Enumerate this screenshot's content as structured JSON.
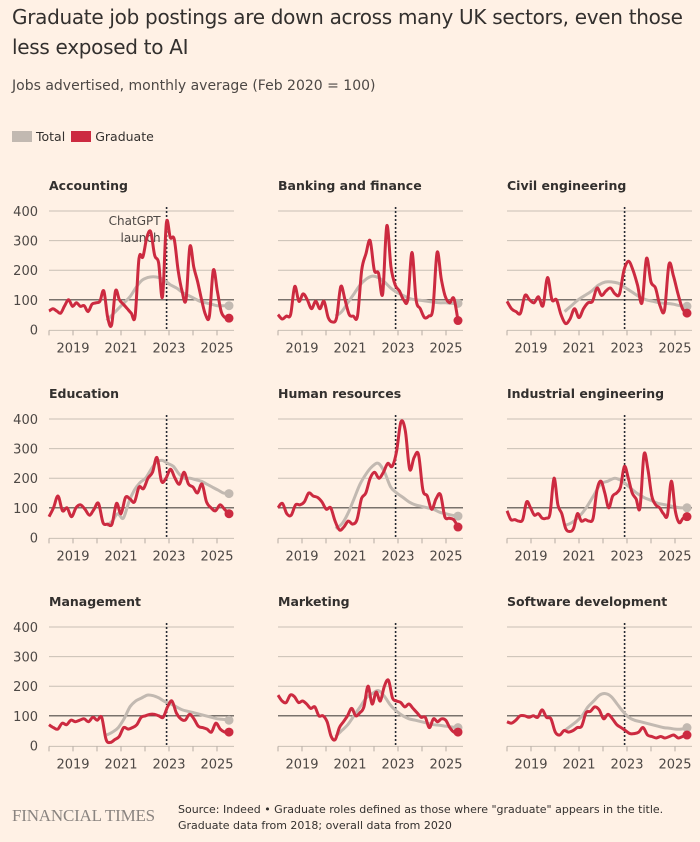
{
  "title": "Graduate job postings are down across many UK sectors, even those less exposed to AI",
  "subtitle": "Jobs advertised, monthly average (Feb 2020 = 100)",
  "legend": [
    {
      "label": "Total",
      "color": "#c2b9b1"
    },
    {
      "label": "Graduate",
      "color": "#cc2a40"
    }
  ],
  "footer": {
    "logo": "FINANCIAL TIMES",
    "source": "Source: Indeed • Graduate roles defined as those where \"graduate\" appears in the title. Graduate data from 2018; overall data from 2020"
  },
  "chart_data": {
    "type": "line",
    "layout": "small-multiples 3x3",
    "ylim": [
      0,
      400
    ],
    "yticks": [
      0,
      100,
      200,
      300,
      400
    ],
    "xlim": [
      2018,
      2025.7
    ],
    "xticks": [
      2018,
      2019,
      2020,
      2021,
      2022,
      2023,
      2024,
      2025
    ],
    "xtick_labels": [
      "2019",
      "2021",
      "2023",
      "2025"
    ],
    "xtick_label_years": [
      2019,
      2021,
      2023,
      2025
    ],
    "reference_line": 100,
    "annotation": {
      "label_line1": "ChatGPT",
      "label_line2": "launch",
      "x": 2022.9
    },
    "graduate_start": 2018.0,
    "total_start": 2020.4,
    "step_years": 0.1667,
    "series_colors": {
      "Total": "#c2b9b1",
      "Graduate": "#cc2a40"
    },
    "panels": [
      {
        "name": "Accounting",
        "graduate": [
          62,
          70,
          62,
          55,
          80,
          100,
          78,
          90,
          78,
          80,
          60,
          85,
          90,
          95,
          130,
          40,
          15,
          130,
          100,
          85,
          70,
          55,
          45,
          240,
          245,
          310,
          330,
          250,
          225,
          110,
          360,
          310,
          305,
          200,
          130,
          100,
          280,
          210,
          160,
          100,
          50,
          45,
          200,
          130,
          60,
          40,
          38
        ],
        "total": [
          30,
          50,
          70,
          90,
          110,
          140,
          165,
          175,
          178,
          175,
          165,
          150,
          140,
          125,
          115,
          105,
          95,
          90,
          85,
          80,
          80,
          80
        ]
      },
      {
        "name": "Banking and finance",
        "graduate": [
          50,
          35,
          45,
          50,
          145,
          95,
          120,
          100,
          70,
          95,
          70,
          95,
          40,
          25,
          40,
          145,
          100,
          50,
          45,
          45,
          200,
          255,
          300,
          200,
          190,
          120,
          350,
          210,
          150,
          130,
          100,
          100,
          260,
          100,
          70,
          40,
          45,
          70,
          260,
          170,
          110,
          90,
          105,
          30
        ],
        "total": [
          45,
          60,
          90,
          120,
          150,
          170,
          180,
          175,
          160,
          140,
          125,
          115,
          105,
          100,
          98,
          95,
          92,
          90,
          90,
          88,
          88
        ]
      },
      {
        "name": "Civil engineering",
        "graduate": [
          95,
          70,
          60,
          55,
          115,
          100,
          90,
          110,
          80,
          175,
          100,
          100,
          50,
          20,
          35,
          70,
          40,
          70,
          90,
          95,
          140,
          115,
          130,
          140,
          120,
          120,
          200,
          230,
          200,
          150,
          90,
          240,
          160,
          140,
          80,
          65,
          220,
          180,
          120,
          70,
          55
        ],
        "total": [
          60,
          80,
          100,
          115,
          130,
          150,
          160,
          160,
          155,
          140,
          125,
          110,
          100,
          95,
          90,
          88,
          85,
          80,
          78
        ]
      }
    ],
    "panels_row2": [
      {
        "name": "Education",
        "graduate": [
          70,
          100,
          140,
          90,
          100,
          70,
          100,
          110,
          95,
          75,
          95,
          115,
          50,
          45,
          45,
          115,
          80,
          135,
          130,
          120,
          170,
          165,
          200,
          220,
          270,
          190,
          200,
          230,
          200,
          180,
          220,
          180,
          170,
          150,
          180,
          120,
          100,
          90,
          110,
          95,
          80
        ],
        "total": [
          40,
          55,
          80,
          65,
          120,
          160,
          185,
          200,
          230,
          255,
          260,
          250,
          240,
          215,
          200,
          200,
          195,
          190,
          180,
          170,
          160,
          150,
          148
        ]
      },
      {
        "name": "Human resources",
        "graduate": [
          100,
          115,
          80,
          75,
          110,
          110,
          120,
          150,
          140,
          135,
          120,
          95,
          100,
          55,
          25,
          35,
          55,
          45,
          60,
          130,
          150,
          200,
          220,
          200,
          220,
          250,
          240,
          290,
          390,
          360,
          230,
          270,
          280,
          160,
          140,
          95,
          130,
          145,
          70,
          65,
          60,
          35
        ],
        "total": [
          30,
          45,
          80,
          130,
          180,
          215,
          240,
          250,
          220,
          170,
          150,
          135,
          120,
          110,
          105,
          100,
          95,
          85,
          80,
          75,
          72
        ]
      },
      {
        "name": "Industrial engineering",
        "graduate": [
          90,
          60,
          60,
          55,
          60,
          120,
          100,
          75,
          80,
          65,
          65,
          80,
          200,
          110,
          80,
          30,
          20,
          30,
          80,
          55,
          60,
          55,
          65,
          160,
          190,
          150,
          100,
          140,
          150,
          170,
          240,
          200,
          150,
          130,
          100,
          280,
          230,
          140,
          110,
          100,
          80,
          75,
          190,
          90,
          50,
          65,
          70
        ],
        "total": [
          40,
          50,
          70,
          100,
          140,
          180,
          190,
          200,
          190,
          170,
          150,
          135,
          125,
          115,
          110,
          105,
          100,
          100
        ]
      }
    ],
    "panels_row3": [
      {
        "name": "Management",
        "graduate": [
          70,
          60,
          55,
          75,
          70,
          85,
          80,
          85,
          90,
          80,
          95,
          85,
          95,
          20,
          10,
          20,
          30,
          60,
          55,
          60,
          70,
          95,
          100,
          105,
          105,
          100,
          95,
          130,
          150,
          110,
          90,
          85,
          105,
          90,
          65,
          60,
          55,
          45,
          75,
          55,
          45,
          45
        ],
        "total": [
          35,
          45,
          60,
          90,
          130,
          150,
          160,
          170,
          168,
          160,
          148,
          140,
          130,
          120,
          115,
          110,
          105,
          100,
          95,
          90,
          88,
          85
        ]
      },
      {
        "name": "Marketing",
        "graduate": [
          170,
          150,
          145,
          170,
          165,
          145,
          150,
          140,
          125,
          130,
          100,
          100,
          80,
          30,
          20,
          60,
          80,
          100,
          125,
          100,
          110,
          130,
          200,
          140,
          180,
          150,
          200,
          220,
          160,
          150,
          145,
          130,
          140,
          125,
          110,
          95,
          95,
          60,
          90,
          80,
          90,
          85,
          60,
          45,
          45
        ],
        "total": [
          30,
          50,
          70,
          100,
          130,
          160,
          175,
          185,
          165,
          135,
          115,
          100,
          90,
          85,
          80,
          75,
          70,
          68,
          65,
          62,
          60
        ]
      },
      {
        "name": "Software development",
        "graduate": [
          80,
          75,
          85,
          100,
          100,
          95,
          100,
          95,
          120,
          95,
          90,
          45,
          35,
          50,
          45,
          50,
          60,
          65,
          110,
          115,
          130,
          120,
          90,
          105,
          90,
          70,
          60,
          50,
          40,
          40,
          45,
          60,
          35,
          30,
          25,
          30,
          25,
          30,
          35,
          25,
          30,
          35
        ],
        "total": [
          50,
          65,
          80,
          100,
          130,
          150,
          170,
          175,
          165,
          140,
          115,
          95,
          85,
          80,
          75,
          70,
          65,
          60,
          58,
          55,
          55,
          60
        ]
      }
    ]
  }
}
